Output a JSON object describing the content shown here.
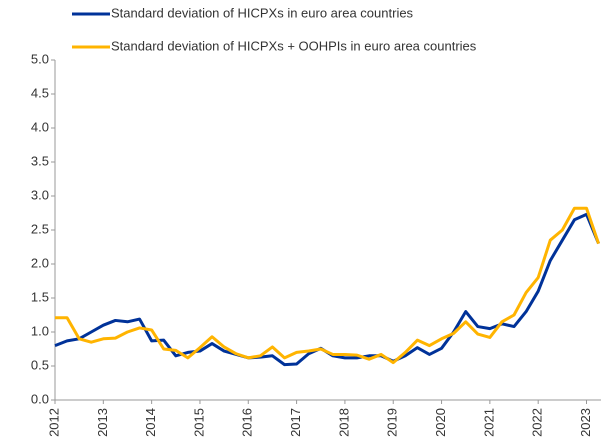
{
  "chart_data": {
    "type": "line",
    "x": [
      2012,
      2012.25,
      2012.5,
      2012.75,
      2013,
      2013.25,
      2013.5,
      2013.75,
      2014,
      2014.25,
      2014.5,
      2014.75,
      2015,
      2015.25,
      2015.5,
      2015.75,
      2016,
      2016.25,
      2016.5,
      2016.75,
      2017,
      2017.25,
      2017.5,
      2017.75,
      2018,
      2018.25,
      2018.5,
      2018.75,
      2019,
      2019.25,
      2019.5,
      2019.75,
      2020,
      2020.25,
      2020.5,
      2020.75,
      2021,
      2021.25,
      2021.5,
      2021.75,
      2022,
      2022.25,
      2022.5,
      2022.75,
      2023,
      2023.25
    ],
    "series": [
      {
        "name": "Standard deviation of HICPXs in euro area countries",
        "color": "#003299",
        "values": [
          0.8,
          0.87,
          0.9,
          1.0,
          1.1,
          1.17,
          1.15,
          1.19,
          0.87,
          0.88,
          0.65,
          0.7,
          0.72,
          0.83,
          0.72,
          0.67,
          0.62,
          0.63,
          0.65,
          0.52,
          0.53,
          0.68,
          0.76,
          0.65,
          0.62,
          0.62,
          0.65,
          0.65,
          0.57,
          0.65,
          0.77,
          0.67,
          0.76,
          1.0,
          1.3,
          1.08,
          1.05,
          1.12,
          1.08,
          1.3,
          1.6,
          2.05,
          2.35,
          2.65,
          2.73,
          2.3
        ]
      },
      {
        "name": "Standard deviation of HICPXs + OOHPIs in euro area countries",
        "color": "#ffb400",
        "values": [
          1.21,
          1.21,
          0.9,
          0.85,
          0.9,
          0.91,
          1.0,
          1.06,
          1.03,
          0.75,
          0.73,
          0.62,
          0.77,
          0.93,
          0.78,
          0.68,
          0.62,
          0.65,
          0.78,
          0.62,
          0.7,
          0.72,
          0.75,
          0.67,
          0.67,
          0.66,
          0.6,
          0.67,
          0.55,
          0.7,
          0.88,
          0.8,
          0.9,
          0.98,
          1.15,
          0.97,
          0.92,
          1.15,
          1.25,
          1.58,
          1.8,
          2.35,
          2.5,
          2.82,
          2.82,
          2.3
        ]
      }
    ],
    "xlim": [
      2012,
      2023.3
    ],
    "xticks": [
      2012,
      2013,
      2014,
      2015,
      2016,
      2017,
      2018,
      2019,
      2020,
      2021,
      2022,
      2023
    ],
    "ylim": [
      0,
      5
    ],
    "yticks": [
      {
        "value": 0,
        "label": "0.0"
      },
      {
        "value": 0.5,
        "label": "0.5"
      },
      {
        "value": 1,
        "label": "1.0"
      },
      {
        "value": 1.5,
        "label": "1.5"
      },
      {
        "value": 2,
        "label": "2.0"
      },
      {
        "value": 2.5,
        "label": "2.5"
      },
      {
        "value": 3,
        "label": "3.0"
      },
      {
        "value": 3.5,
        "label": "3.5"
      },
      {
        "value": 4,
        "label": "4.0"
      },
      {
        "value": 4.5,
        "label": "4.5"
      },
      {
        "value": 5,
        "label": "5.0"
      }
    ],
    "grid": false
  }
}
